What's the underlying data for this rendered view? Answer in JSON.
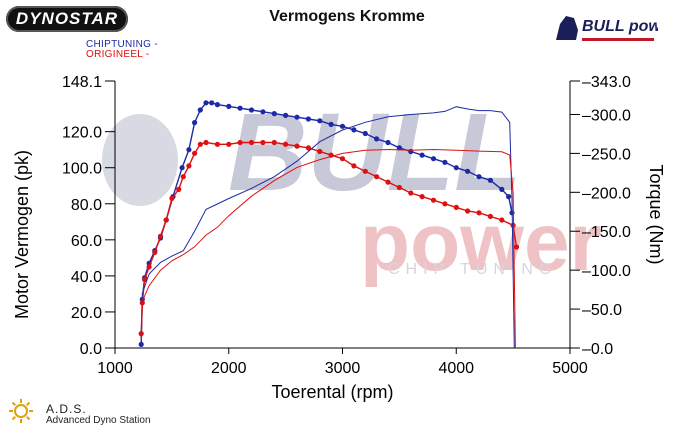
{
  "header": {
    "title": "Vermogens Kromme",
    "dyno_logo_text": "DYNOSTAR",
    "bullpower_logo_text": "BULL power",
    "legend_blue": "CHIPTUNING -",
    "legend_red": "ORIGINEEL -"
  },
  "footer": {
    "ads_name": "A.D.S.",
    "ads_subtitle": "Advanced Dyno Station"
  },
  "watermark": {
    "line1": "BULL",
    "line2": "power",
    "line3": "CHIP TUNING"
  },
  "colors": {
    "chiptuning": "#1d2aa8",
    "origineel": "#e01010",
    "watermark_red": "#e8a9ad",
    "watermark_blue": "#9aa0c2"
  },
  "chart_data": {
    "type": "line",
    "title": "Vermogens Kromme",
    "xlabel": "Toerental (rpm)",
    "ylabel": "Motor Vermogen (pk)",
    "y2label": "Torque (Nm)",
    "xlim": [
      1000,
      5000
    ],
    "ylim": [
      0,
      148.1
    ],
    "y2lim": [
      0,
      343.0
    ],
    "x_ticks": [
      "1000",
      "2000",
      "3000",
      "4000",
      "5000"
    ],
    "y_ticks": [
      "0.0",
      "20.0",
      "40.0",
      "60.0",
      "80.0",
      "100.0",
      "120.0",
      "148.1"
    ],
    "y2_ticks": [
      "0.0",
      "50.0",
      "100.0",
      "150.0",
      "200.0",
      "250.0",
      "300.0",
      "343.0"
    ],
    "grid": false,
    "series": [
      {
        "name": "CHIPTUNING",
        "axis": "power",
        "style": "dots",
        "color": "#1d2aa8",
        "points": [
          [
            1230,
            2
          ],
          [
            1240,
            27
          ],
          [
            1260,
            39
          ],
          [
            1300,
            47
          ],
          [
            1350,
            54
          ],
          [
            1400,
            61
          ],
          [
            1450,
            71
          ],
          [
            1510,
            84
          ],
          [
            1590,
            100
          ],
          [
            1650,
            110
          ],
          [
            1700,
            125
          ],
          [
            1750,
            132
          ],
          [
            1800,
            136
          ],
          [
            1850,
            136
          ],
          [
            1900,
            135
          ],
          [
            2000,
            134
          ],
          [
            2100,
            133
          ],
          [
            2200,
            132
          ],
          [
            2300,
            131
          ],
          [
            2400,
            130
          ],
          [
            2500,
            129
          ],
          [
            2600,
            128
          ],
          [
            2700,
            127
          ],
          [
            2800,
            126
          ],
          [
            2900,
            124
          ],
          [
            3000,
            123
          ],
          [
            3100,
            121
          ],
          [
            3200,
            119
          ],
          [
            3300,
            116
          ],
          [
            3400,
            114
          ],
          [
            3500,
            111
          ],
          [
            3600,
            109
          ],
          [
            3700,
            107
          ],
          [
            3800,
            105
          ],
          [
            3900,
            103
          ],
          [
            4000,
            100
          ],
          [
            4100,
            98
          ],
          [
            4200,
            95
          ],
          [
            4300,
            93
          ],
          [
            4400,
            88
          ],
          [
            4460,
            84
          ],
          [
            4490,
            75
          ]
        ]
      },
      {
        "name": "ORIGINEEL",
        "axis": "power",
        "style": "dots",
        "color": "#e01010",
        "points": [
          [
            1230,
            8
          ],
          [
            1240,
            25
          ],
          [
            1260,
            38
          ],
          [
            1300,
            45
          ],
          [
            1350,
            53
          ],
          [
            1400,
            62
          ],
          [
            1450,
            71
          ],
          [
            1500,
            83
          ],
          [
            1560,
            88
          ],
          [
            1600,
            95
          ],
          [
            1650,
            101
          ],
          [
            1700,
            108
          ],
          [
            1750,
            113
          ],
          [
            1800,
            114
          ],
          [
            1900,
            113
          ],
          [
            2000,
            113
          ],
          [
            2100,
            114
          ],
          [
            2200,
            114
          ],
          [
            2300,
            114
          ],
          [
            2400,
            114
          ],
          [
            2500,
            113
          ],
          [
            2600,
            112
          ],
          [
            2700,
            111
          ],
          [
            2800,
            109
          ],
          [
            2900,
            107
          ],
          [
            3000,
            105
          ],
          [
            3100,
            101
          ],
          [
            3200,
            98
          ],
          [
            3300,
            95
          ],
          [
            3400,
            92
          ],
          [
            3500,
            89
          ],
          [
            3600,
            86
          ],
          [
            3700,
            84
          ],
          [
            3800,
            82
          ],
          [
            3900,
            80
          ],
          [
            4000,
            78
          ],
          [
            4100,
            76
          ],
          [
            4200,
            75
          ],
          [
            4300,
            73
          ],
          [
            4400,
            71
          ],
          [
            4500,
            68
          ],
          [
            4530,
            56
          ]
        ]
      },
      {
        "name": "CHIPTUNING",
        "axis": "torque",
        "style": "line",
        "color": "#1d2aa8",
        "points": [
          [
            1230,
            10
          ],
          [
            1240,
            70
          ],
          [
            1300,
            95
          ],
          [
            1400,
            110
          ],
          [
            1500,
            118
          ],
          [
            1600,
            125
          ],
          [
            1700,
            150
          ],
          [
            1800,
            178
          ],
          [
            1900,
            185
          ],
          [
            2000,
            192
          ],
          [
            2200,
            205
          ],
          [
            2400,
            220
          ],
          [
            2600,
            240
          ],
          [
            2800,
            265
          ],
          [
            3000,
            280
          ],
          [
            3200,
            290
          ],
          [
            3400,
            297
          ],
          [
            3600,
            300
          ],
          [
            3800,
            302
          ],
          [
            3900,
            304
          ],
          [
            4000,
            310
          ],
          [
            4100,
            307
          ],
          [
            4200,
            305
          ],
          [
            4300,
            305
          ],
          [
            4400,
            303
          ],
          [
            4470,
            290
          ],
          [
            4490,
            190
          ],
          [
            4510,
            0
          ]
        ]
      },
      {
        "name": "ORIGINEEL",
        "axis": "torque",
        "style": "line",
        "color": "#e01010",
        "points": [
          [
            1230,
            10
          ],
          [
            1240,
            60
          ],
          [
            1300,
            80
          ],
          [
            1400,
            100
          ],
          [
            1500,
            112
          ],
          [
            1600,
            120
          ],
          [
            1700,
            130
          ],
          [
            1800,
            145
          ],
          [
            1900,
            155
          ],
          [
            2000,
            170
          ],
          [
            2200,
            195
          ],
          [
            2400,
            215
          ],
          [
            2600,
            232
          ],
          [
            2800,
            242
          ],
          [
            3000,
            250
          ],
          [
            3200,
            254
          ],
          [
            3400,
            255
          ],
          [
            3600,
            254
          ],
          [
            3800,
            255
          ],
          [
            4000,
            254
          ],
          [
            4200,
            253
          ],
          [
            4400,
            252
          ],
          [
            4470,
            248
          ],
          [
            4500,
            200
          ],
          [
            4520,
            0
          ]
        ]
      }
    ]
  }
}
